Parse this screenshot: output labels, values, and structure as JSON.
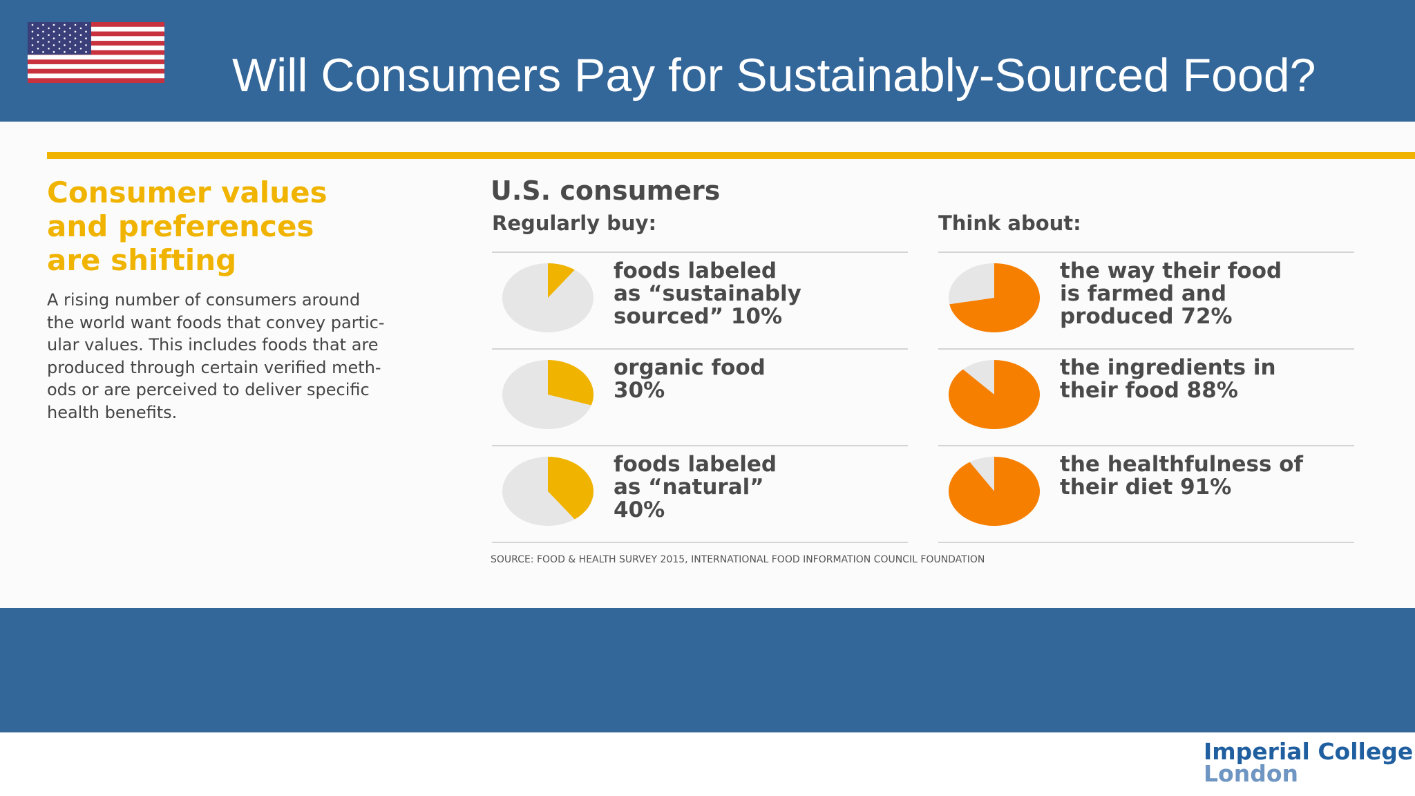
{
  "slide": {
    "title": "Will Consumers Pay for Sustainably-Sourced Food?",
    "flag_icon": "us-flag-icon",
    "heading_lines": [
      "Consumer values",
      "and preferences",
      "are shifting"
    ],
    "description_lines": [
      "A rising number of consumers around",
      "the world want foods that convey partic-",
      "ular values. This includes foods that are",
      "produced through certain verified meth-",
      "ods or are perceived to deliver specific",
      "health benefits."
    ],
    "logo_lines": [
      "Imperial College",
      "London"
    ],
    "colors": {
      "header": "#336699",
      "gold": "#f0b400",
      "orange": "#f77f00",
      "pie_bg": "#e6e6e6"
    }
  },
  "chart_data": [
    {
      "type": "pie",
      "title": "U.S. consumers",
      "groups": [
        {
          "heading": "Regularly buy:",
          "color": "#f0b400",
          "items": [
            {
              "label_lines": [
                "foods labeled",
                "as “sustainably",
                "sourced”  10%"
              ],
              "value": 10
            },
            {
              "label_lines": [
                "organic food",
                "30%"
              ],
              "value": 30
            },
            {
              "label_lines": [
                "foods labeled",
                "as “natural”",
                "40%"
              ],
              "value": 40
            }
          ]
        },
        {
          "heading": "Think about:",
          "color": "#f77f00",
          "items": [
            {
              "label_lines": [
                "the way their food",
                "is farmed and",
                "produced  72%"
              ],
              "value": 72
            },
            {
              "label_lines": [
                "the ingredients in",
                "their food  88%"
              ],
              "value": 88
            },
            {
              "label_lines": [
                "the healthfulness of",
                "their diet  91%"
              ],
              "value": 91
            }
          ]
        }
      ],
      "source": "SOURCE: FOOD & HEALTH SURVEY 2015, INTERNATIONAL FOOD INFORMATION COUNCIL FOUNDATION"
    }
  ]
}
